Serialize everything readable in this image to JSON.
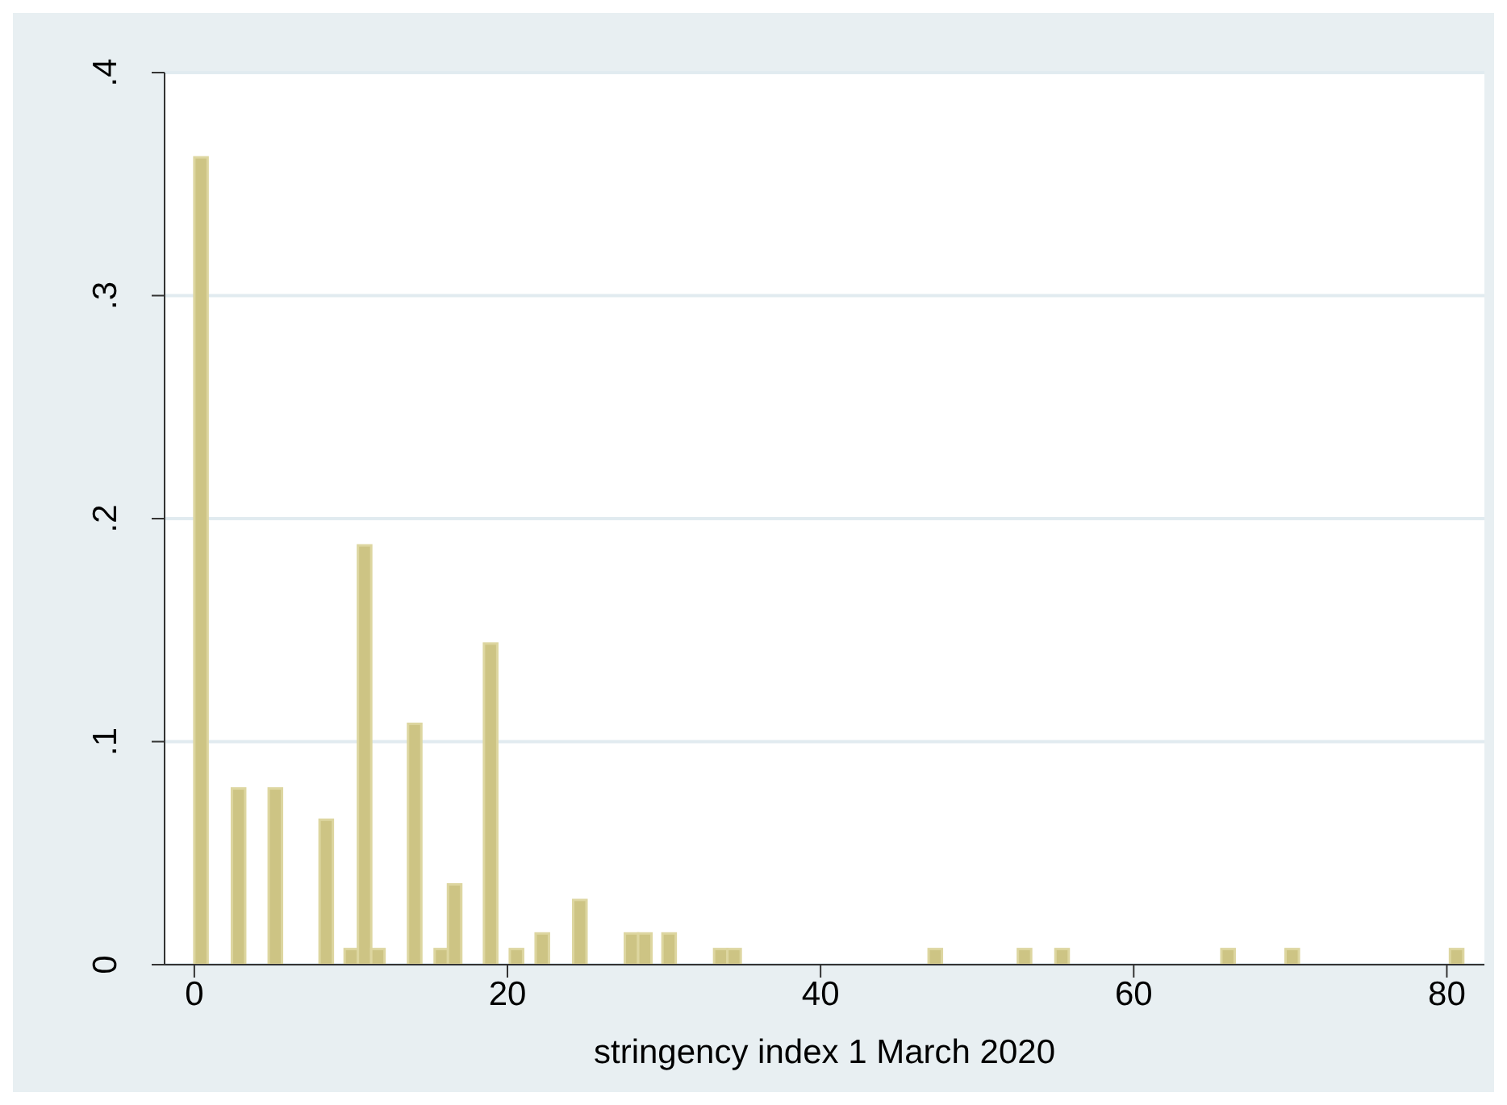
{
  "chart_data": {
    "type": "histogram",
    "xlabel": "stringency index 1 March 2020",
    "bins": [
      0,
      0.85,
      2.4,
      3.25,
      4.75,
      5.6,
      8.0,
      8.85,
      9.6,
      10.45,
      11.3,
      12.15,
      13.65,
      14.5,
      15.35,
      16.2,
      17.05,
      18.5,
      19.35,
      20.15,
      21.0,
      21.8,
      22.65,
      24.2,
      25.05,
      27.5,
      28.35,
      29.2,
      29.9,
      30.75,
      33.2,
      34.05,
      34.9,
      46.9,
      47.75,
      52.6,
      53.45,
      55.0,
      55.85,
      65.6,
      66.45,
      69.7,
      70.55,
      80.2,
      81.05
    ],
    "values": [
      0.362,
      0,
      0.079,
      0,
      0.079,
      0,
      0.065,
      0,
      0.007,
      0.188,
      0.007,
      0,
      0.108,
      0,
      0.007,
      0.036,
      0,
      0.144,
      0,
      0.007,
      0,
      0.014,
      0,
      0.029,
      0,
      0.014,
      0.014,
      0,
      0.014,
      0,
      0.007,
      0.007,
      0,
      0.007,
      0,
      0.007,
      0,
      0.007,
      0,
      0.007,
      0,
      0.007,
      0,
      0.007
    ],
    "color": "#cdc484",
    "xlim": [
      -1.9,
      82.4
    ],
    "xticks": [
      0,
      20,
      40,
      60,
      80
    ],
    "ylim": [
      0,
      0.4
    ],
    "yticks": [
      0,
      {
        "value": 0.1,
        "label": ".1"
      },
      {
        "value": 0.2,
        "label": ".2"
      },
      {
        "value": 0.3,
        "label": ".3"
      },
      {
        "value": 0.4,
        "label": ".4"
      }
    ],
    "grid": "y"
  }
}
